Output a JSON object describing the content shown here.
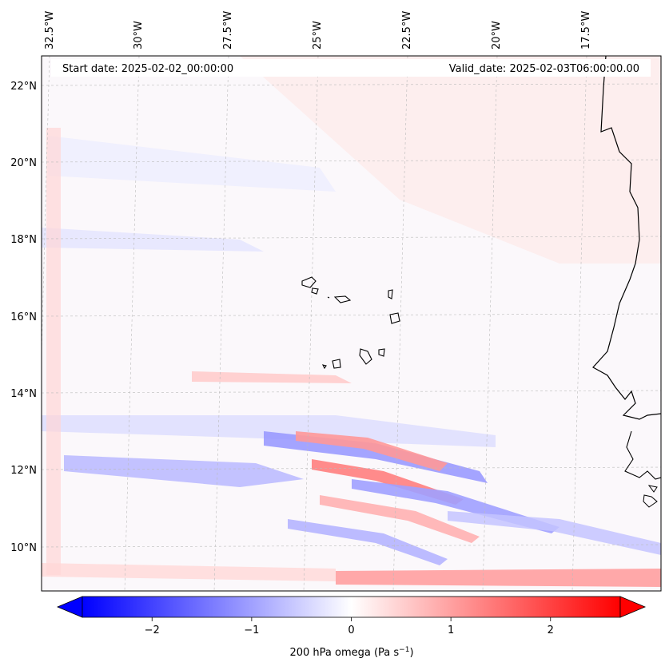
{
  "map": {
    "start_date": "Start date: 2025-02-02_00:00:00",
    "valid_date": "Valid_date: 2025-02-03T06:00:00.00",
    "lon_labels": [
      "32.5°W",
      "30°W",
      "27.5°W",
      "25°W",
      "22.5°W",
      "20°W",
      "17.5°W"
    ],
    "lat_labels": [
      "22°N",
      "20°N",
      "18°N",
      "16°N",
      "14°N",
      "12°N",
      "10°N"
    ]
  },
  "colorbar": {
    "label": "200 hPa omega (Pa s",
    "label_exponent": "−1",
    "label_close": ")",
    "ticks": [
      "−2",
      "−1",
      "0",
      "1",
      "2"
    ],
    "min": -2.7,
    "max": 2.7,
    "low_color": "#0000ff",
    "mid_color": "#ffffff",
    "high_color": "#ff0000"
  },
  "colors": {
    "coastline": "#000000",
    "gridline": "#bbbbbb"
  }
}
